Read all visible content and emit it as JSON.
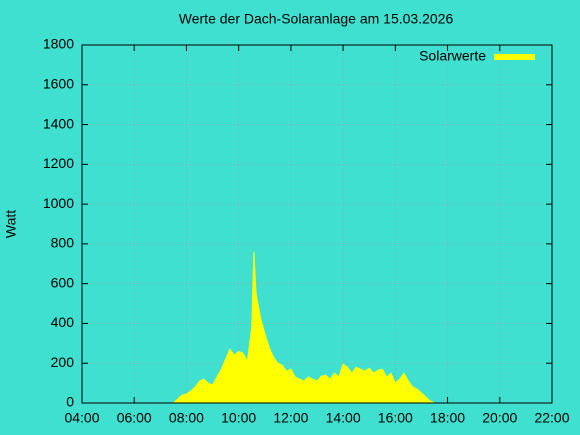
{
  "chart_data": {
    "type": "area",
    "title": "Werte der Dach-Solaranlage am 15.03.2026",
    "ylabel": "Watt",
    "x": [
      "07:30",
      "07:40",
      "07:50",
      "08:00",
      "08:10",
      "08:20",
      "08:30",
      "08:40",
      "08:50",
      "09:00",
      "09:10",
      "09:20",
      "09:30",
      "09:40",
      "09:50",
      "10:00",
      "10:10",
      "10:20",
      "10:30",
      "10:35",
      "10:40",
      "10:50",
      "11:00",
      "11:10",
      "11:20",
      "11:30",
      "11:40",
      "11:50",
      "12:00",
      "12:10",
      "12:20",
      "12:30",
      "12:40",
      "12:50",
      "13:00",
      "13:10",
      "13:20",
      "13:30",
      "13:40",
      "13:50",
      "14:00",
      "14:10",
      "14:20",
      "14:30",
      "14:40",
      "14:50",
      "15:00",
      "15:10",
      "15:20",
      "15:30",
      "15:40",
      "15:50",
      "16:00",
      "16:10",
      "16:20",
      "16:30",
      "16:40",
      "16:50",
      "17:00",
      "17:10",
      "17:20",
      "17:30"
    ],
    "series": [
      {
        "name": "Solarwerte",
        "color": "#ffff00",
        "values": [
          0,
          20,
          40,
          45,
          60,
          80,
          110,
          120,
          100,
          90,
          130,
          170,
          220,
          270,
          240,
          260,
          250,
          210,
          380,
          760,
          550,
          430,
          350,
          280,
          230,
          200,
          190,
          160,
          170,
          130,
          120,
          110,
          130,
          120,
          110,
          135,
          140,
          120,
          150,
          130,
          195,
          180,
          150,
          180,
          170,
          160,
          175,
          150,
          165,
          170,
          130,
          150,
          100,
          120,
          150,
          110,
          80,
          70,
          50,
          30,
          10,
          0
        ]
      }
    ],
    "xlim": [
      "04:00",
      "22:00"
    ],
    "xticks": [
      "04:00",
      "06:00",
      "08:00",
      "10:00",
      "12:00",
      "14:00",
      "16:00",
      "18:00",
      "20:00",
      "22:00"
    ],
    "ylim": [
      0,
      1800
    ],
    "yticks": [
      0,
      200,
      400,
      600,
      800,
      1000,
      1200,
      1400,
      1600,
      1800
    ],
    "grid": true,
    "legend": "top-right"
  }
}
